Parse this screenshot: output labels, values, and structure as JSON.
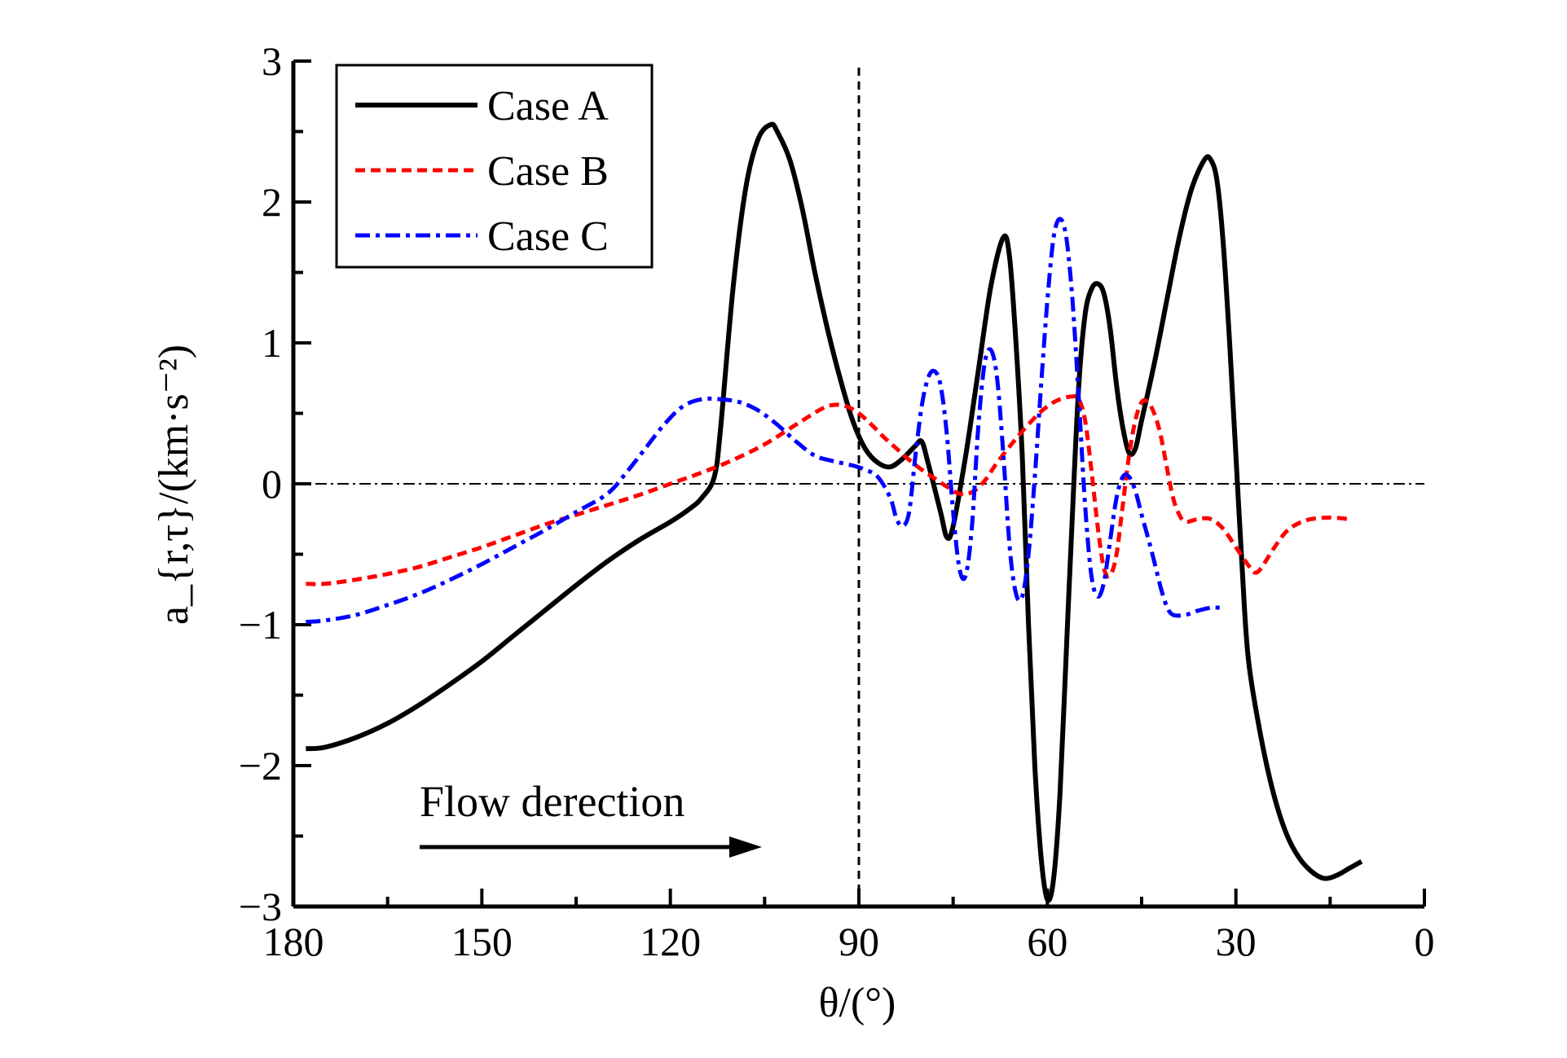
{
  "chart_data": {
    "type": "line",
    "xlabel": "θ/(°)",
    "ylabel": "a_{r,τ}/(km·s⁻²)",
    "xlim": [
      180,
      0
    ],
    "ylim": [
      -3,
      3
    ],
    "x_ticks": [
      180,
      150,
      120,
      90,
      60,
      30,
      0
    ],
    "y_ticks": [
      -3,
      -2,
      -1,
      0,
      1,
      2,
      3
    ],
    "legend_position": "top-left",
    "grid": false,
    "annotation": "Flow derection",
    "vline_x": 90,
    "series": [
      {
        "name": "Case A",
        "color": "#000000",
        "style": "solid",
        "points": [
          [
            178,
            -1.88
          ],
          [
            175,
            -1.87
          ],
          [
            170,
            -1.8
          ],
          [
            165,
            -1.7
          ],
          [
            160,
            -1.57
          ],
          [
            155,
            -1.42
          ],
          [
            150,
            -1.26
          ],
          [
            145,
            -1.08
          ],
          [
            140,
            -0.9
          ],
          [
            135,
            -0.72
          ],
          [
            130,
            -0.55
          ],
          [
            125,
            -0.4
          ],
          [
            120,
            -0.27
          ],
          [
            117,
            -0.18
          ],
          [
            115,
            -0.1
          ],
          [
            113,
            0.05
          ],
          [
            112,
            0.4
          ],
          [
            110,
            1.4
          ],
          [
            108,
            2.1
          ],
          [
            106,
            2.45
          ],
          [
            104,
            2.55
          ],
          [
            103,
            2.5
          ],
          [
            101,
            2.3
          ],
          [
            99,
            1.95
          ],
          [
            97,
            1.5
          ],
          [
            95,
            1.1
          ],
          [
            93,
            0.75
          ],
          [
            91,
            0.45
          ],
          [
            89,
            0.25
          ],
          [
            87,
            0.15
          ],
          [
            85,
            0.12
          ],
          [
            83,
            0.18
          ],
          [
            81,
            0.27
          ],
          [
            80,
            0.3
          ],
          [
            79,
            0.15
          ],
          [
            77,
            -0.2
          ],
          [
            76,
            -0.38
          ],
          [
            75,
            -0.3
          ],
          [
            73,
            0.2
          ],
          [
            71,
            0.8
          ],
          [
            69,
            1.4
          ],
          [
            67,
            1.75
          ],
          [
            66,
            1.6
          ],
          [
            65,
            1.0
          ],
          [
            64,
            0.2
          ],
          [
            63,
            -1.0
          ],
          [
            62,
            -2.0
          ],
          [
            61,
            -2.65
          ],
          [
            60,
            -2.95
          ],
          [
            59,
            -2.8
          ],
          [
            58,
            -2.2
          ],
          [
            57,
            -1.2
          ],
          [
            56,
            -0.2
          ],
          [
            55,
            0.7
          ],
          [
            54,
            1.2
          ],
          [
            53,
            1.38
          ],
          [
            52,
            1.42
          ],
          [
            51,
            1.35
          ],
          [
            50,
            1.1
          ],
          [
            49,
            0.7
          ],
          [
            48,
            0.4
          ],
          [
            47,
            0.22
          ],
          [
            46,
            0.25
          ],
          [
            45,
            0.45
          ],
          [
            43,
            0.85
          ],
          [
            41,
            1.3
          ],
          [
            39,
            1.75
          ],
          [
            37,
            2.1
          ],
          [
            35,
            2.3
          ],
          [
            34,
            2.3
          ],
          [
            33,
            2.15
          ],
          [
            32,
            1.7
          ],
          [
            31,
            1.0
          ],
          [
            30,
            0.2
          ],
          [
            29,
            -0.6
          ],
          [
            28,
            -1.25
          ],
          [
            26,
            -1.8
          ],
          [
            24,
            -2.2
          ],
          [
            22,
            -2.48
          ],
          [
            20,
            -2.65
          ],
          [
            18,
            -2.75
          ],
          [
            16,
            -2.8
          ],
          [
            14,
            -2.78
          ],
          [
            12,
            -2.73
          ],
          [
            10,
            -2.68
          ]
        ]
      },
      {
        "name": "Case B",
        "color": "#ff0000",
        "style": "dashed",
        "points": [
          [
            178,
            -0.71
          ],
          [
            175,
            -0.71
          ],
          [
            170,
            -0.68
          ],
          [
            165,
            -0.64
          ],
          [
            160,
            -0.59
          ],
          [
            155,
            -0.52
          ],
          [
            150,
            -0.45
          ],
          [
            145,
            -0.37
          ],
          [
            140,
            -0.29
          ],
          [
            135,
            -0.22
          ],
          [
            130,
            -0.15
          ],
          [
            125,
            -0.08
          ],
          [
            120,
            0.0
          ],
          [
            115,
            0.08
          ],
          [
            110,
            0.17
          ],
          [
            105,
            0.28
          ],
          [
            100,
            0.42
          ],
          [
            96,
            0.53
          ],
          [
            94,
            0.56
          ],
          [
            92,
            0.55
          ],
          [
            90,
            0.5
          ],
          [
            88,
            0.42
          ],
          [
            86,
            0.33
          ],
          [
            84,
            0.25
          ],
          [
            82,
            0.17
          ],
          [
            80,
            0.1
          ],
          [
            78,
            0.04
          ],
          [
            76,
            -0.02
          ],
          [
            74,
            -0.07
          ],
          [
            72,
            -0.06
          ],
          [
            70,
            0.02
          ],
          [
            68,
            0.15
          ],
          [
            65,
            0.32
          ],
          [
            62,
            0.47
          ],
          [
            60,
            0.55
          ],
          [
            58,
            0.6
          ],
          [
            56,
            0.62
          ],
          [
            55,
            0.6
          ],
          [
            54,
            0.45
          ],
          [
            53,
            0.1
          ],
          [
            52,
            -0.3
          ],
          [
            51,
            -0.6
          ],
          [
            50,
            -0.65
          ],
          [
            49,
            -0.5
          ],
          [
            48,
            -0.15
          ],
          [
            47,
            0.2
          ],
          [
            46,
            0.45
          ],
          [
            45,
            0.58
          ],
          [
            44,
            0.58
          ],
          [
            43,
            0.5
          ],
          [
            42,
            0.35
          ],
          [
            41,
            0.12
          ],
          [
            40,
            -0.1
          ],
          [
            39,
            -0.22
          ],
          [
            38,
            -0.27
          ],
          [
            36,
            -0.25
          ],
          [
            34,
            -0.25
          ],
          [
            32,
            -0.32
          ],
          [
            30,
            -0.45
          ],
          [
            28,
            -0.58
          ],
          [
            27,
            -0.63
          ],
          [
            26,
            -0.6
          ],
          [
            24,
            -0.46
          ],
          [
            22,
            -0.34
          ],
          [
            20,
            -0.28
          ],
          [
            18,
            -0.25
          ],
          [
            15,
            -0.24
          ],
          [
            12,
            -0.25
          ]
        ]
      },
      {
        "name": "Case C",
        "color": "#0000ff",
        "style": "dashdot",
        "points": [
          [
            178,
            -0.98
          ],
          [
            175,
            -0.97
          ],
          [
            170,
            -0.93
          ],
          [
            165,
            -0.86
          ],
          [
            160,
            -0.78
          ],
          [
            155,
            -0.68
          ],
          [
            150,
            -0.57
          ],
          [
            145,
            -0.45
          ],
          [
            140,
            -0.33
          ],
          [
            135,
            -0.2
          ],
          [
            130,
            -0.07
          ],
          [
            127,
            0.08
          ],
          [
            124,
            0.25
          ],
          [
            121,
            0.42
          ],
          [
            118,
            0.55
          ],
          [
            115,
            0.6
          ],
          [
            112,
            0.6
          ],
          [
            109,
            0.58
          ],
          [
            106,
            0.52
          ],
          [
            103,
            0.42
          ],
          [
            100,
            0.3
          ],
          [
            97,
            0.2
          ],
          [
            94,
            0.16
          ],
          [
            91,
            0.13
          ],
          [
            89,
            0.1
          ],
          [
            87,
            0.05
          ],
          [
            85,
            -0.1
          ],
          [
            84,
            -0.25
          ],
          [
            83,
            -0.3
          ],
          [
            82,
            -0.2
          ],
          [
            81,
            0.2
          ],
          [
            80,
            0.55
          ],
          [
            79,
            0.75
          ],
          [
            78,
            0.8
          ],
          [
            77,
            0.7
          ],
          [
            76,
            0.35
          ],
          [
            75,
            -0.2
          ],
          [
            74,
            -0.6
          ],
          [
            73,
            -0.65
          ],
          [
            72,
            -0.3
          ],
          [
            71,
            0.4
          ],
          [
            70,
            0.85
          ],
          [
            69,
            0.95
          ],
          [
            68,
            0.75
          ],
          [
            67,
            0.2
          ],
          [
            66,
            -0.45
          ],
          [
            65,
            -0.78
          ],
          [
            64,
            -0.8
          ],
          [
            63,
            -0.5
          ],
          [
            62,
            0.05
          ],
          [
            61,
            0.7
          ],
          [
            60,
            1.3
          ],
          [
            59,
            1.75
          ],
          [
            58,
            1.88
          ],
          [
            57,
            1.75
          ],
          [
            56,
            1.3
          ],
          [
            55,
            0.6
          ],
          [
            54,
            -0.15
          ],
          [
            53,
            -0.65
          ],
          [
            52,
            -0.8
          ],
          [
            51,
            -0.7
          ],
          [
            50,
            -0.4
          ],
          [
            49,
            -0.1
          ],
          [
            48,
            0.05
          ],
          [
            47,
            0.05
          ],
          [
            46,
            -0.05
          ],
          [
            45,
            -0.22
          ],
          [
            44,
            -0.38
          ],
          [
            43,
            -0.55
          ],
          [
            42,
            -0.73
          ],
          [
            41,
            -0.87
          ],
          [
            40,
            -0.93
          ],
          [
            38,
            -0.93
          ],
          [
            36,
            -0.9
          ],
          [
            34,
            -0.88
          ],
          [
            32,
            -0.88
          ]
        ]
      }
    ]
  }
}
